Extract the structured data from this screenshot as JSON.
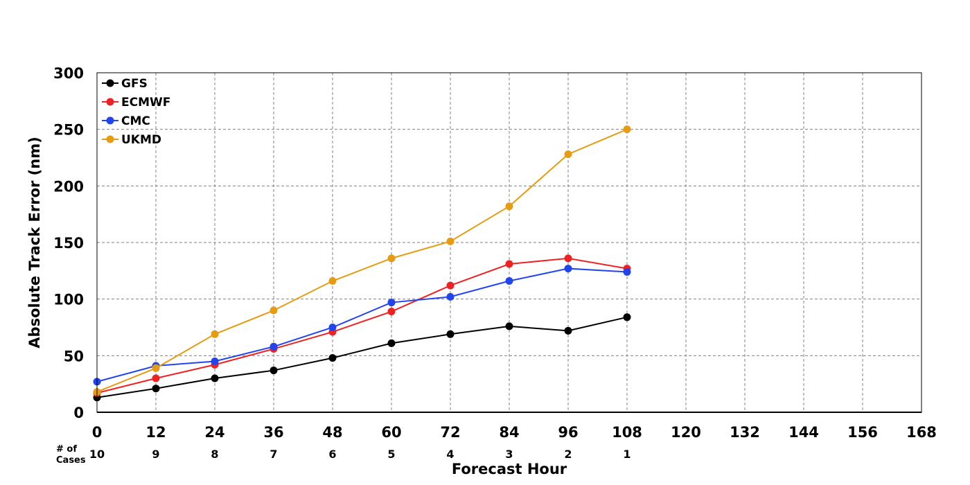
{
  "chart_data": {
    "type": "line",
    "title": "",
    "xlabel": "Forecast Hour",
    "ylabel": "Absolute Track Error (nm)",
    "xlim": [
      0,
      168
    ],
    "ylim": [
      0,
      300
    ],
    "x_ticks": [
      0,
      12,
      24,
      36,
      48,
      60,
      72,
      84,
      96,
      108,
      120,
      132,
      144,
      156,
      168
    ],
    "y_ticks": [
      0,
      50,
      100,
      150,
      200,
      250,
      300
    ],
    "grid": true,
    "legend_position": "top-left",
    "x": [
      0,
      12,
      24,
      36,
      48,
      60,
      72,
      84,
      96,
      108
    ],
    "series": [
      {
        "name": "GFS",
        "color": "#000000",
        "values": [
          13,
          21,
          30,
          37,
          48,
          61,
          69,
          76,
          72,
          84
        ]
      },
      {
        "name": "ECMWF",
        "color": "#ee2222",
        "values": [
          17,
          30,
          42,
          56,
          71,
          89,
          112,
          131,
          136,
          127
        ]
      },
      {
        "name": "CMC",
        "color": "#2244ee",
        "values": [
          27,
          41,
          45,
          58,
          75,
          97,
          102,
          116,
          127,
          124
        ]
      },
      {
        "name": "UKMD",
        "color": "#e59c12",
        "values": [
          18,
          39,
          69,
          90,
          116,
          136,
          151,
          182,
          228,
          250
        ]
      }
    ],
    "cases": {
      "header_line1": "# of",
      "header_line2": "Cases",
      "x": [
        0,
        12,
        24,
        36,
        48,
        60,
        72,
        84,
        96,
        108
      ],
      "values": [
        "10",
        "9",
        "8",
        "7",
        "6",
        "5",
        "4",
        "3",
        "2",
        "1"
      ]
    }
  }
}
